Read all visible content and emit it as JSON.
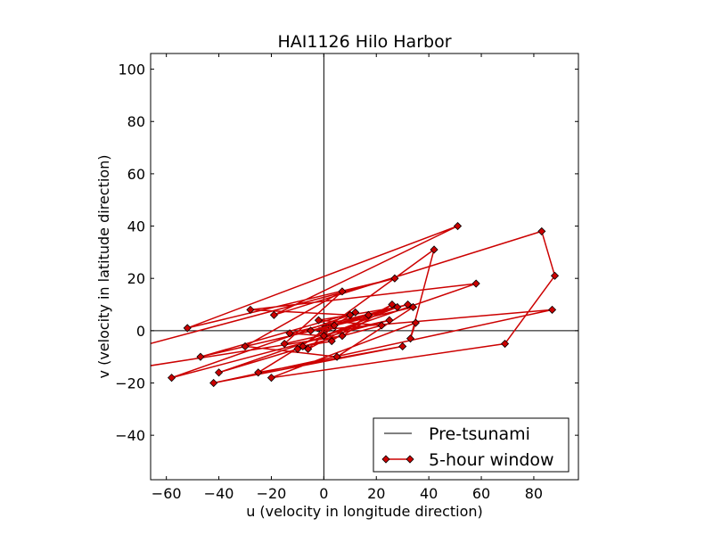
{
  "chart_data": {
    "type": "line",
    "title": "HAI1126   Hilo Harbor",
    "xlabel": "u (velocity in longitude direction)",
    "ylabel": "v (velocity in latitude direction)",
    "xlim": [
      -66,
      97
    ],
    "ylim": [
      -57,
      106
    ],
    "xticks": [
      -60,
      -40,
      -20,
      0,
      20,
      40,
      60,
      80
    ],
    "yticks": [
      -40,
      -20,
      0,
      20,
      40,
      60,
      80,
      100
    ],
    "grid": false,
    "legend_position": "lower-right",
    "reference_lines": {
      "x": 0,
      "y": 0
    },
    "series": [
      {
        "name": "Pre-tsunami",
        "color": "#000000",
        "marker": "none",
        "points": [
          [
            0,
            0
          ],
          [
            2,
            1
          ],
          [
            -1,
            2
          ],
          [
            3,
            2
          ],
          [
            -2,
            1
          ],
          [
            1,
            -1
          ],
          [
            4,
            3
          ],
          [
            -3,
            0
          ],
          [
            2,
            -2
          ],
          [
            5,
            1
          ],
          [
            0,
            3
          ],
          [
            -2,
            -1
          ],
          [
            3,
            0
          ],
          [
            1,
            2
          ],
          [
            -1,
            -2
          ],
          [
            2,
            1
          ],
          [
            0,
            0
          ]
        ]
      },
      {
        "name": "5-hour window",
        "color": "#cc0000",
        "marker": "diamond",
        "points": [
          [
            -70,
            -6
          ],
          [
            27,
            20
          ],
          [
            -52,
            1
          ],
          [
            51,
            40
          ],
          [
            -19,
            6
          ],
          [
            83,
            38
          ],
          [
            88,
            21
          ],
          [
            69,
            -5
          ],
          [
            -20,
            -18
          ],
          [
            35,
            3
          ],
          [
            33,
            -3
          ],
          [
            42,
            31
          ],
          [
            -10,
            -7
          ],
          [
            -40,
            -16
          ],
          [
            58,
            18
          ],
          [
            -28,
            8
          ],
          [
            10,
            6
          ],
          [
            -58,
            -18
          ],
          [
            25,
            4
          ],
          [
            -15,
            -5
          ],
          [
            7,
            15
          ],
          [
            -30,
            -6
          ],
          [
            5,
            -10
          ],
          [
            34,
            9
          ],
          [
            -47,
            -10
          ],
          [
            12,
            7
          ],
          [
            -25,
            -16
          ],
          [
            30,
            -6
          ],
          [
            -42,
            -20
          ],
          [
            87,
            8
          ],
          [
            -5,
            0
          ],
          [
            17,
            6
          ],
          [
            3,
            -4
          ],
          [
            -8,
            -6
          ],
          [
            22,
            2
          ],
          [
            -2,
            4
          ],
          [
            28,
            9
          ],
          [
            0,
            -2
          ],
          [
            -13,
            -1
          ],
          [
            32,
            10
          ],
          [
            4,
            2
          ],
          [
            -6,
            -7
          ],
          [
            26,
            10
          ],
          [
            7,
            -2
          ],
          [
            -70,
            -14
          ]
        ]
      }
    ]
  }
}
